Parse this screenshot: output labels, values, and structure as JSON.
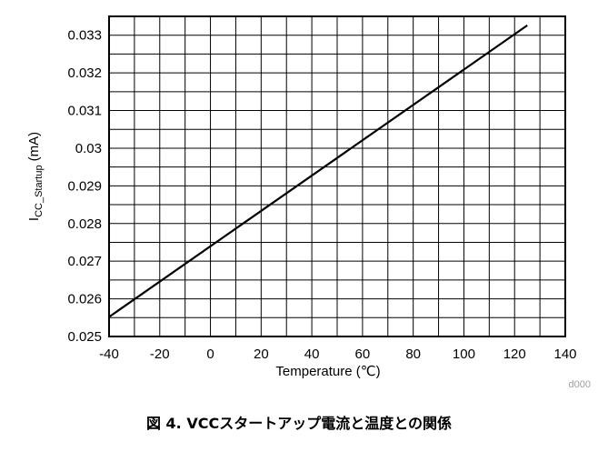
{
  "chart_data": {
    "type": "line",
    "title": "",
    "xlabel": "Temperature (℃)",
    "ylabel_main": "I",
    "ylabel_sub": "CC_Startup",
    "ylabel_unit": "(mA)",
    "xlim": [
      -40,
      140
    ],
    "ylim": [
      0.025,
      0.0335
    ],
    "x_ticks": [
      -40,
      -20,
      0,
      20,
      40,
      60,
      80,
      100,
      120,
      140
    ],
    "x_tick_labels": [
      "-40",
      "-20",
      "0",
      "20",
      "40",
      "60",
      "80",
      "100",
      "120",
      "140"
    ],
    "y_ticks": [
      0.025,
      0.026,
      0.027,
      0.028,
      0.029,
      0.03,
      0.031,
      0.032,
      0.033
    ],
    "y_tick_labels": [
      "0.025",
      "0.026",
      "0.027",
      "0.028",
      "0.029",
      "0.03",
      "0.031",
      "0.032",
      "0.033"
    ],
    "grid": true,
    "series": [
      {
        "x": [
          -40,
          125
        ],
        "y": [
          0.02552,
          0.03326
        ]
      }
    ],
    "watermark": "d000"
  },
  "caption": "図 4. VCCスタートアップ電流と温度との関係"
}
